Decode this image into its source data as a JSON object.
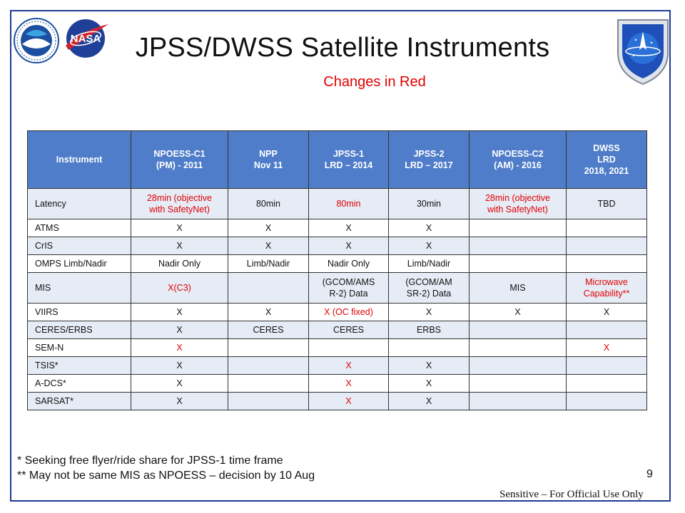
{
  "header": {
    "title": "JPSS/DWSS Satellite Instruments",
    "subtitle": "Changes in Red"
  },
  "logos": [
    "noaa-logo",
    "nasa-logo",
    "air-force-space-command-logo"
  ],
  "colors": {
    "header_fill": "#4f7dc9",
    "row_shade": "#e6ecf6",
    "change_red": "#e00000",
    "frame": "#1f3a93"
  },
  "table": {
    "headers": [
      [
        "Instrument"
      ],
      [
        "NPOESS-C1",
        "(PM) - 2011"
      ],
      [
        "NPP",
        "Nov 11"
      ],
      [
        "JPSS-1",
        "LRD – 2014"
      ],
      [
        "JPSS-2",
        "LRD – 2017"
      ],
      [
        "NPOESS-C2",
        "(AM) - 2016"
      ],
      [
        "DWSS",
        "LRD",
        "2018, 2021"
      ]
    ],
    "rows": [
      {
        "instrument": "Latency",
        "cells": [
          {
            "lines": [
              "28min (objective",
              "with SafetyNet)"
            ],
            "red": true
          },
          {
            "lines": [
              "80min"
            ],
            "red": false
          },
          {
            "lines": [
              "80min"
            ],
            "red": true
          },
          {
            "lines": [
              "30min"
            ],
            "red": false
          },
          {
            "lines": [
              "28min (objective",
              "with SafetyNet)"
            ],
            "red": true
          },
          {
            "lines": [
              "TBD"
            ],
            "red": false
          }
        ]
      },
      {
        "instrument": "ATMS",
        "cells": [
          {
            "lines": [
              "X"
            ],
            "red": false
          },
          {
            "lines": [
              "X"
            ],
            "red": false
          },
          {
            "lines": [
              "X"
            ],
            "red": false
          },
          {
            "lines": [
              "X"
            ],
            "red": false
          },
          {
            "lines": [
              ""
            ],
            "red": false
          },
          {
            "lines": [
              ""
            ],
            "red": false
          }
        ]
      },
      {
        "instrument": "CrIS",
        "cells": [
          {
            "lines": [
              "X"
            ],
            "red": false
          },
          {
            "lines": [
              "X"
            ],
            "red": false
          },
          {
            "lines": [
              "X"
            ],
            "red": false
          },
          {
            "lines": [
              "X"
            ],
            "red": false
          },
          {
            "lines": [
              ""
            ],
            "red": false
          },
          {
            "lines": [
              ""
            ],
            "red": false
          }
        ]
      },
      {
        "instrument": "OMPS Limb/Nadir",
        "cells": [
          {
            "lines": [
              "Nadir Only"
            ],
            "red": false
          },
          {
            "lines": [
              "Limb/Nadir"
            ],
            "red": false
          },
          {
            "lines": [
              "Nadir Only"
            ],
            "red": false
          },
          {
            "lines": [
              "Limb/Nadir"
            ],
            "red": false
          },
          {
            "lines": [
              ""
            ],
            "red": false
          },
          {
            "lines": [
              ""
            ],
            "red": false
          }
        ]
      },
      {
        "instrument": "MIS",
        "cells": [
          {
            "lines": [
              "X(C3)"
            ],
            "red": true
          },
          {
            "lines": [
              ""
            ],
            "red": false
          },
          {
            "lines": [
              "(GCOM/AMS",
              "R-2) Data"
            ],
            "red": false
          },
          {
            "lines": [
              "(GCOM/AM",
              "SR-2) Data"
            ],
            "red": false
          },
          {
            "lines": [
              "MIS"
            ],
            "red": false
          },
          {
            "lines": [
              "Microwave",
              "Capability**"
            ],
            "red": true
          }
        ]
      },
      {
        "instrument": "VIIRS",
        "cells": [
          {
            "lines": [
              "X"
            ],
            "red": false
          },
          {
            "lines": [
              "X"
            ],
            "red": false
          },
          {
            "lines": [
              "X (OC fixed)"
            ],
            "red": true
          },
          {
            "lines": [
              "X"
            ],
            "red": false
          },
          {
            "lines": [
              "X"
            ],
            "red": false
          },
          {
            "lines": [
              "X"
            ],
            "red": false
          }
        ]
      },
      {
        "instrument": "CERES/ERBS",
        "cells": [
          {
            "lines": [
              "X"
            ],
            "red": false
          },
          {
            "lines": [
              "CERES"
            ],
            "red": false
          },
          {
            "lines": [
              "CERES"
            ],
            "red": false
          },
          {
            "lines": [
              "ERBS"
            ],
            "red": false
          },
          {
            "lines": [
              ""
            ],
            "red": false
          },
          {
            "lines": [
              ""
            ],
            "red": false
          }
        ]
      },
      {
        "instrument": "SEM-N",
        "cells": [
          {
            "lines": [
              "X"
            ],
            "red": true
          },
          {
            "lines": [
              ""
            ],
            "red": false
          },
          {
            "lines": [
              ""
            ],
            "red": false
          },
          {
            "lines": [
              ""
            ],
            "red": false
          },
          {
            "lines": [
              ""
            ],
            "red": false
          },
          {
            "lines": [
              "X"
            ],
            "red": true
          }
        ]
      },
      {
        "instrument": "TSIS*",
        "cells": [
          {
            "lines": [
              "X"
            ],
            "red": false
          },
          {
            "lines": [
              ""
            ],
            "red": false
          },
          {
            "lines": [
              "X"
            ],
            "red": true
          },
          {
            "lines": [
              "X"
            ],
            "red": false
          },
          {
            "lines": [
              ""
            ],
            "red": false
          },
          {
            "lines": [
              ""
            ],
            "red": false
          }
        ]
      },
      {
        "instrument": "A-DCS*",
        "cells": [
          {
            "lines": [
              "X"
            ],
            "red": false
          },
          {
            "lines": [
              ""
            ],
            "red": false
          },
          {
            "lines": [
              "X"
            ],
            "red": true
          },
          {
            "lines": [
              "X"
            ],
            "red": false
          },
          {
            "lines": [
              ""
            ],
            "red": false
          },
          {
            "lines": [
              ""
            ],
            "red": false
          }
        ]
      },
      {
        "instrument": "SARSAT*",
        "cells": [
          {
            "lines": [
              "X"
            ],
            "red": false
          },
          {
            "lines": [
              ""
            ],
            "red": false
          },
          {
            "lines": [
              "X"
            ],
            "red": true
          },
          {
            "lines": [
              "X"
            ],
            "red": false
          },
          {
            "lines": [
              ""
            ],
            "red": false
          },
          {
            "lines": [
              ""
            ],
            "red": false
          }
        ]
      }
    ]
  },
  "footnotes": [
    "*  Seeking free flyer/ride share for JPSS-1 time frame",
    "** May not be same MIS as NPOESS – decision by 10 Aug"
  ],
  "page_number": "9",
  "sensitivity": "Sensitive – For Official Use Only"
}
